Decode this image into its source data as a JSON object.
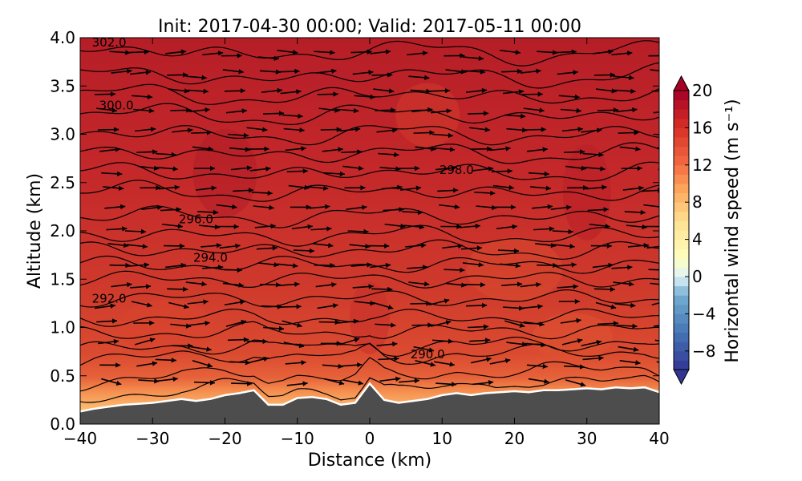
{
  "chart_data": {
    "type": "heatmap",
    "title": "Init: 2017-04-30 00:00; Valid: 2017-05-11 00:00",
    "xlabel": "Distance (km)",
    "ylabel": "Altitude (km)",
    "xlim": [
      -40,
      40
    ],
    "ylim": [
      0.0,
      4.0
    ],
    "x_ticks": [
      -40,
      -30,
      -20,
      -10,
      0,
      10,
      20,
      30,
      40
    ],
    "x_tick_labels": [
      "−40",
      "−30",
      "−20",
      "−10",
      "0",
      "10",
      "20",
      "30",
      "40"
    ],
    "y_ticks": [
      0.0,
      0.5,
      1.0,
      1.5,
      2.0,
      2.5,
      3.0,
      3.5,
      4.0
    ],
    "y_tick_labels": [
      "0.0",
      "0.5",
      "1.0",
      "1.5",
      "2.0",
      "2.5",
      "3.0",
      "3.5",
      "4.0"
    ],
    "grid": false,
    "colorbar": {
      "label": "Horizontal wind speed (m s⁻¹)",
      "range": [
        -10,
        20
      ],
      "extend": "both",
      "ticks": [
        -8,
        -4,
        0,
        4,
        8,
        12,
        16,
        20
      ],
      "tick_labels": [
        "−8",
        "−4",
        "0",
        "4",
        "8",
        "12",
        "16",
        "20"
      ],
      "colormap": "RdYlBu_r"
    },
    "terrain": {
      "color": "#4d4d4d",
      "x": [
        -40,
        -38,
        -36,
        -34,
        -32,
        -30,
        -28,
        -26,
        -24,
        -22,
        -20,
        -18,
        -16,
        -14,
        -12,
        -10,
        -8,
        -6,
        -4,
        -2,
        0,
        2,
        4,
        6,
        8,
        10,
        12,
        14,
        16,
        18,
        20,
        22,
        24,
        26,
        28,
        30,
        32,
        34,
        36,
        38,
        40
      ],
      "altitude": [
        0.13,
        0.16,
        0.18,
        0.2,
        0.21,
        0.22,
        0.24,
        0.26,
        0.24,
        0.26,
        0.3,
        0.32,
        0.35,
        0.2,
        0.2,
        0.27,
        0.28,
        0.26,
        0.2,
        0.22,
        0.42,
        0.25,
        0.22,
        0.24,
        0.26,
        0.3,
        0.32,
        0.3,
        0.32,
        0.33,
        0.34,
        0.33,
        0.35,
        0.35,
        0.36,
        0.37,
        0.36,
        0.38,
        0.37,
        0.38,
        0.33
      ]
    },
    "wind_speed_field": {
      "description_levels": "surface layer 4-12 m/s rising to 14-18 m/s aloft",
      "speed_by_altitude": [
        {
          "altitude": 0.3,
          "speed": 6
        },
        {
          "altitude": 0.5,
          "speed": 12
        },
        {
          "altitude": 1.0,
          "speed": 14
        },
        {
          "altitude": 2.0,
          "speed": 16
        },
        {
          "altitude": 3.0,
          "speed": 17
        },
        {
          "altitude": 4.0,
          "speed": 18
        }
      ]
    },
    "theta_contours": {
      "labels": [
        {
          "text": "302.0",
          "x": -36.0,
          "y": 3.95
        },
        {
          "text": "300.0",
          "x": -35.0,
          "y": 3.3
        },
        {
          "text": "298.0",
          "x": 12.0,
          "y": 2.63
        },
        {
          "text": "296.0",
          "x": -24.0,
          "y": 2.12
        },
        {
          "text": "294.0",
          "x": -22.0,
          "y": 1.72
        },
        {
          "text": "292.0",
          "x": -36.0,
          "y": 1.3
        },
        {
          "text": "290.0",
          "x": 8.0,
          "y": 0.72
        }
      ],
      "levels_y_at_left": [
        0.35,
        0.5,
        0.7,
        0.8,
        0.95,
        1.1,
        1.3,
        1.5,
        1.65,
        1.8,
        1.95,
        2.15,
        2.4,
        2.6,
        2.8,
        3.0,
        3.2,
        3.4,
        3.6,
        3.85
      ]
    },
    "wind_vectors": {
      "direction": "left-to-right",
      "note": "horizontal wind arrows over grid"
    }
  }
}
